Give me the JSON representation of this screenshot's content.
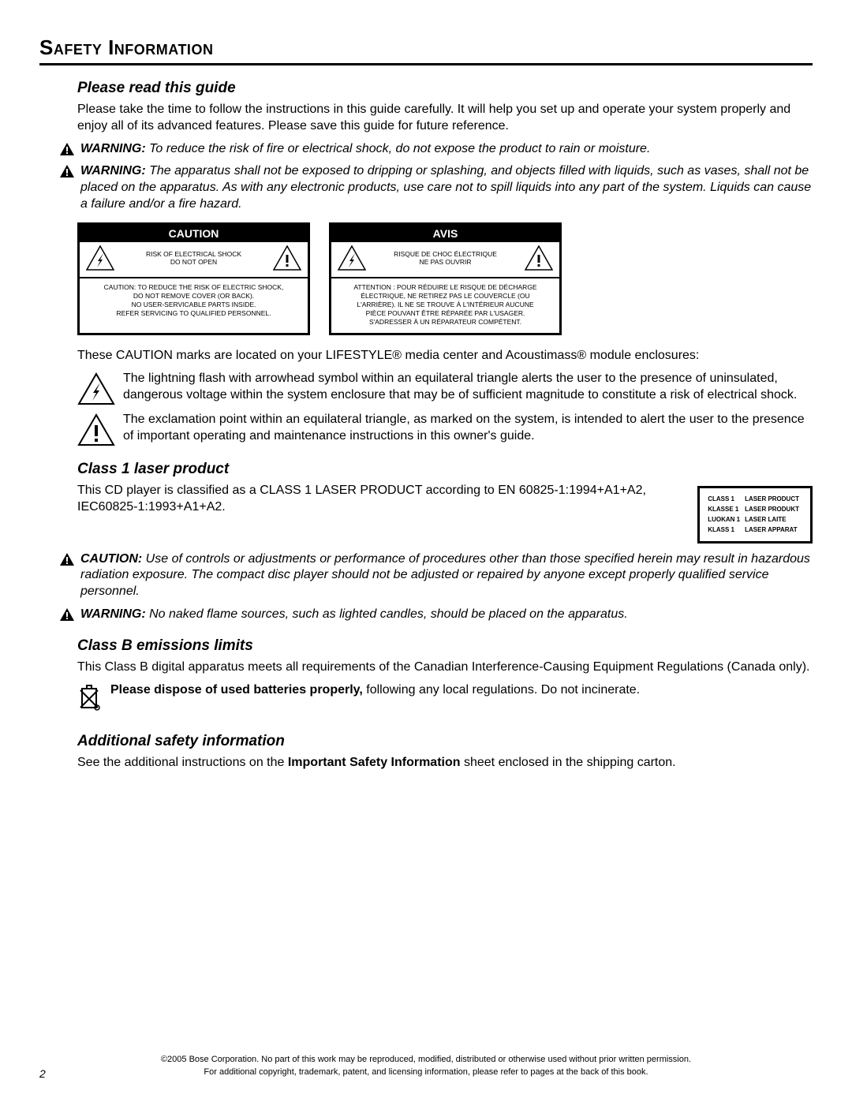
{
  "pageTitle": "Safety Information",
  "sections": {
    "read": {
      "title": "Please read this guide",
      "body": "Please take the time to follow the instructions in this guide carefully. It will help you set up and operate your system properly and enjoy all of its advanced features. Please save this guide for future reference."
    },
    "warn1": {
      "label": "WARNING:",
      "text": "To reduce the risk of fire or electrical shock, do not expose the product to rain or moisture."
    },
    "warn2": {
      "label": "WARNING:",
      "text": "The apparatus shall not be exposed to dripping or splashing, and objects filled with liquids, such as vases, shall not be placed on the apparatus. As with any electronic products, use care not to spill liquids into any part of the system. Liquids can cause a failure and/or a fire hazard."
    },
    "cautionBox1": {
      "header": "CAUTION",
      "mid1": "RISK OF ELECTRICAL SHOCK",
      "mid2": "DO NOT OPEN",
      "body": "CAUTION: TO REDUCE THE RISK OF ELECTRIC SHOCK,\nDO NOT REMOVE COVER (OR BACK).\nNO USER-SERVICABLE PARTS INSIDE.\nREFER SERVICING TO QUALIFIED PERSONNEL."
    },
    "cautionBox2": {
      "header": "AVIS",
      "mid1": "RISQUE DE CHOC ÉLECTRIQUE",
      "mid2": "NE PAS OUVRIR",
      "body": "ATTENTION : POUR RÉDUIRE LE RISQUE DE DÉCHARGE\nÉLECTRIQUE, NE RETIREZ PAS LE COUVERCLE (OU\nL'ARRIÈRE). IL NE SE TROUVE À L'INTÉRIEUR AUCUNE\nPIÈCE POUVANT ÊTRE RÉPARÉE PAR L'USAGER.\nS'ADRESSER À UN RÉPARATEUR COMPÉTENT."
    },
    "marksIntro": "These CAUTION marks are located on your LIFESTYLE® media center and Acoustimass® module enclosures:",
    "lightningDesc": "The lightning flash with arrowhead symbol within an equilateral triangle alerts the user to the presence of uninsulated, dangerous voltage within the system enclosure that may be of sufficient magnitude to constitute a risk of electrical shock.",
    "exclamDesc": "The exclamation point within an equilateral triangle, as marked on the system, is intended to alert the user to the presence of important operating and maintenance instructions in this owner's guide.",
    "laser": {
      "title": "Class 1 laser product",
      "body": "This CD player is classified as a CLASS 1 LASER PRODUCT according to EN 60825-1:1994+A1+A2, IEC60825-1:1993+A1+A2.",
      "labelRows": [
        [
          "CLASS 1",
          "LASER PRODUCT"
        ],
        [
          "KLASSE 1",
          "LASER PRODUKT"
        ],
        [
          "LUOKAN 1",
          "LASER LAITE"
        ],
        [
          "KLASS 1",
          "LASER APPARAT"
        ]
      ]
    },
    "caution1": {
      "label": "CAUTION:",
      "text": "Use of controls or adjustments or performance of procedures other than those specified herein may result in hazardous radiation exposure. The compact disc player should not be adjusted or repaired by anyone except properly qualified service personnel."
    },
    "warn3": {
      "label": "WARNING:",
      "text": "No naked flame sources, such as lighted candles, should be placed on the apparatus."
    },
    "classB": {
      "title": "Class B emissions limits",
      "body": "This Class B digital apparatus meets all requirements of the Canadian Interference-Causing Equipment Regulations (Canada only)."
    },
    "battery": {
      "bold": "Please dispose of used batteries properly,",
      "rest": " following any local regulations. Do not incinerate."
    },
    "additional": {
      "title": "Additional safety information",
      "pre": "See the additional instructions on the ",
      "bold": "Important Safety Information",
      "post": " sheet enclosed in the shipping carton."
    }
  },
  "footer": {
    "line1": "©2005 Bose Corporation. No part of this work may be reproduced, modified, distributed or otherwise used without prior written permission.",
    "line2": "For additional copyright, trademark, patent, and licensing information, please refer to pages at the back of this book."
  },
  "pageNumber": "2"
}
